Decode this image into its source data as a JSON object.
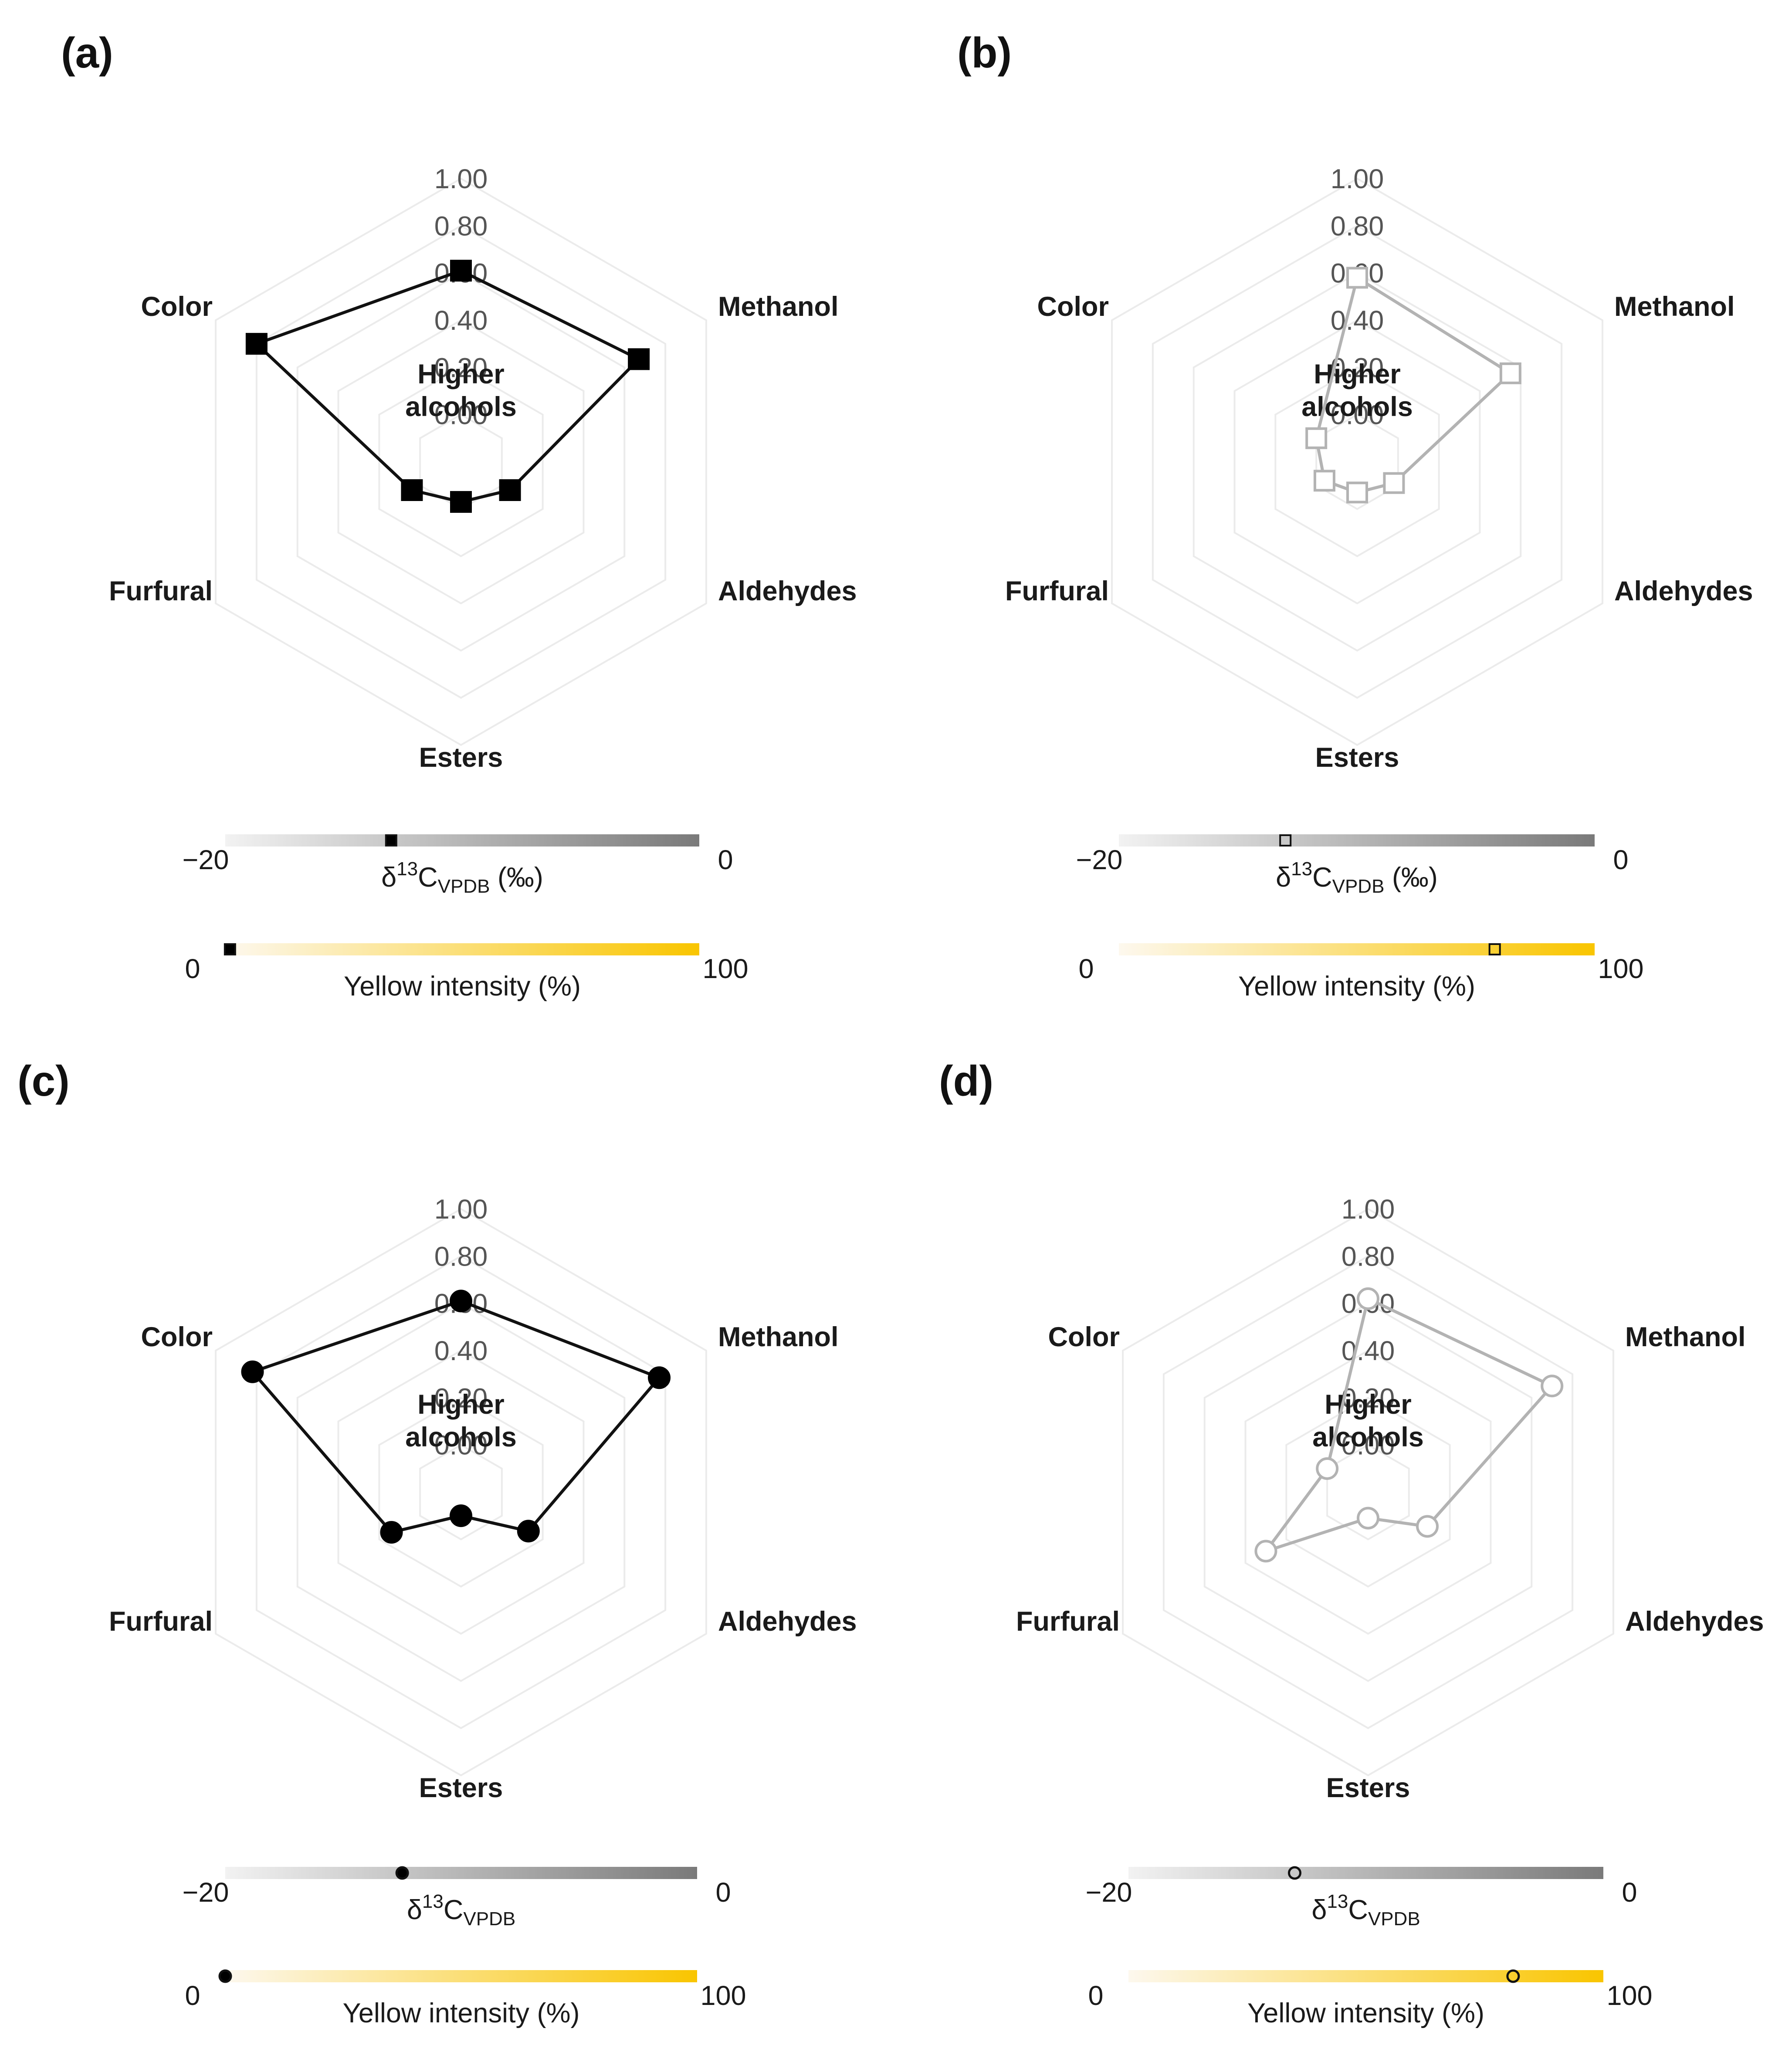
{
  "chart_data": [
    {
      "type": "radar",
      "panel_label": "(a)",
      "axes": [
        "Higher alcohols",
        "Methanol",
        "Aldehydes",
        "Esters",
        "Furfural",
        "Color"
      ],
      "axis_label_lines": [
        [
          "Higher",
          "alcohols"
        ],
        [
          "Methanol"
        ],
        [
          "Aldehydes"
        ],
        [
          "Esters"
        ],
        [
          "Furfural"
        ],
        [
          "Color"
        ]
      ],
      "ticks": [
        "1.00",
        "0.80",
        "0.60",
        "0.40",
        "0.20",
        "0.00"
      ],
      "range": [
        -0.2,
        1.0
      ],
      "values": [
        0.61,
        0.67,
        0.04,
        -0.03,
        0.04,
        0.8
      ],
      "marker": "square",
      "filled": true,
      "line_color": "#111111",
      "scales": [
        {
          "kind": "d13C",
          "label_main": "δ",
          "label_sup": "13",
          "label_mid": "C",
          "label_sub": "VPDB",
          "label_suffix": " (‰)",
          "min_label": "−20",
          "max_label": "0",
          "min": -20,
          "max": 0,
          "value": -13.0,
          "gradient": [
            "#f2f2f2",
            "#7a7a7a"
          ]
        },
        {
          "kind": "yellow",
          "label_main": "Yellow intensity (%)",
          "min_label": "0",
          "max_label": "100",
          "min": 0,
          "max": 100,
          "value": 1,
          "gradient": [
            "#fdf8ee",
            "#f9c500"
          ]
        }
      ]
    },
    {
      "type": "radar",
      "panel_label": "(b)",
      "axes": [
        "Higher alcohols",
        "Methanol",
        "Aldehydes",
        "Esters",
        "Furfural",
        "Color"
      ],
      "axis_label_lines": [
        [
          "Higher",
          "alcohols"
        ],
        [
          "Methanol"
        ],
        [
          "Aldehydes"
        ],
        [
          "Esters"
        ],
        [
          "Furfural"
        ],
        [
          "Color"
        ]
      ],
      "ticks": [
        "1.00",
        "0.80",
        "0.60",
        "0.40",
        "0.20",
        "0.00"
      ],
      "range": [
        -0.2,
        1.0
      ],
      "values": [
        0.58,
        0.55,
        -0.02,
        -0.07,
        -0.04,
        0.0
      ],
      "marker": "square",
      "filled": false,
      "line_color": "#b3b3b3",
      "scales": [
        {
          "kind": "d13C",
          "label_main": "δ",
          "label_sup": "13",
          "label_mid": "C",
          "label_sub": "VPDB",
          "label_suffix": " (‰)",
          "min_label": "−20",
          "max_label": "0",
          "min": -20,
          "max": 0,
          "value": -13.0,
          "gradient": [
            "#f2f2f2",
            "#7a7a7a"
          ]
        },
        {
          "kind": "yellow",
          "label_main": "Yellow intensity (%)",
          "min_label": "0",
          "max_label": "100",
          "min": 0,
          "max": 100,
          "value": 79,
          "gradient": [
            "#fdf8ee",
            "#f9c500"
          ]
        }
      ]
    },
    {
      "type": "radar",
      "panel_label": "(c)",
      "axes": [
        "Higher alcohols",
        "Methanol",
        "Aldehydes",
        "Esters",
        "Furfural",
        "Color"
      ],
      "axis_label_lines": [
        [
          "Higher",
          "alcohols"
        ],
        [
          "Methanol"
        ],
        [
          "Aldehydes"
        ],
        [
          "Esters"
        ],
        [
          "Furfural"
        ],
        [
          "Color"
        ]
      ],
      "ticks": [
        "1.00",
        "0.80",
        "0.60",
        "0.40",
        "0.20",
        "0.00"
      ],
      "range": [
        -0.2,
        1.0
      ],
      "values": [
        0.61,
        0.77,
        0.13,
        -0.1,
        0.14,
        0.82
      ],
      "marker": "circle",
      "filled": true,
      "line_color": "#111111",
      "scales": [
        {
          "kind": "d13C",
          "label_main": "δ",
          "label_sup": "13",
          "label_mid": "C",
          "label_sub": "VPDB",
          "label_suffix": "",
          "min_label": "−20",
          "max_label": "0",
          "min": -20,
          "max": 0,
          "value": -12.5,
          "gradient": [
            "#f2f2f2",
            "#7a7a7a"
          ]
        },
        {
          "kind": "yellow",
          "label_main": "Yellow intensity (%)",
          "min_label": "0",
          "max_label": "100",
          "min": 0,
          "max": 100,
          "value": 0,
          "gradient": [
            "#fdf8ee",
            "#f9c500"
          ]
        }
      ]
    },
    {
      "type": "radar",
      "panel_label": "(d)",
      "axes": [
        "Higher alcohols",
        "Methanol",
        "Aldehydes",
        "Esters",
        "Furfural",
        "Color"
      ],
      "axis_label_lines": [
        [
          "Higher",
          "alcohols"
        ],
        [
          "Methanol"
        ],
        [
          "Aldehydes"
        ],
        [
          "Esters"
        ],
        [
          "Furfural"
        ],
        [
          "Color"
        ]
      ],
      "ticks": [
        "1.00",
        "0.80",
        "0.60",
        "0.40",
        "0.20",
        "0.00"
      ],
      "range": [
        -0.2,
        1.0
      ],
      "values": [
        0.62,
        0.7,
        0.09,
        -0.09,
        0.3,
        0.0
      ],
      "marker": "circle",
      "filled": false,
      "line_color": "#b3b3b3",
      "scales": [
        {
          "kind": "d13C",
          "label_main": "δ",
          "label_sup": "13",
          "label_mid": "C",
          "label_sub": "VPDB",
          "label_suffix": "",
          "min_label": "−20",
          "max_label": "0",
          "min": -20,
          "max": 0,
          "value": -13.0,
          "gradient": [
            "#f2f2f2",
            "#7a7a7a"
          ]
        },
        {
          "kind": "yellow",
          "label_main": "Yellow intensity (%)",
          "min_label": "0",
          "max_label": "100",
          "min": 0,
          "max": 100,
          "value": 81,
          "gradient": [
            "#fdf8ee",
            "#f9c500"
          ]
        }
      ]
    }
  ]
}
